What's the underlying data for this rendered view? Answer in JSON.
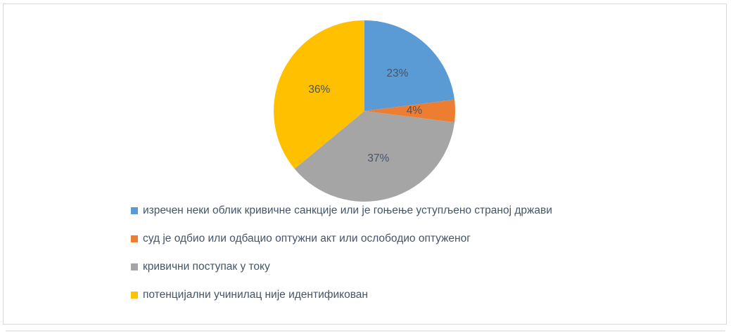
{
  "frame": {
    "border_color": "#d8d8d8",
    "background": "#ffffff"
  },
  "chart_data": {
    "type": "pie",
    "title": "",
    "start_angle_deg": 0,
    "direction": "clockwise",
    "legend_position": "bottom-left",
    "data_label_color": "#44546A",
    "legend_text_color": "#44546A",
    "slices": [
      {
        "label": "изречен неки облик кривичне санкције или је гоњење уступљено страној држави",
        "value": 23,
        "percent_label": "23%",
        "color": "#5B9BD5"
      },
      {
        "label": "суд је одбио или одбацио оптужни акт или ослободио оптуженог",
        "value": 4,
        "percent_label": "4%",
        "color": "#ED7D31"
      },
      {
        "label": "кривични поступак у току",
        "value": 37,
        "percent_label": "37%",
        "color": "#A5A5A5"
      },
      {
        "label": "потенцијални учинилац није идентификован",
        "value": 36,
        "percent_label": "36%",
        "color": "#FFC000"
      }
    ]
  }
}
